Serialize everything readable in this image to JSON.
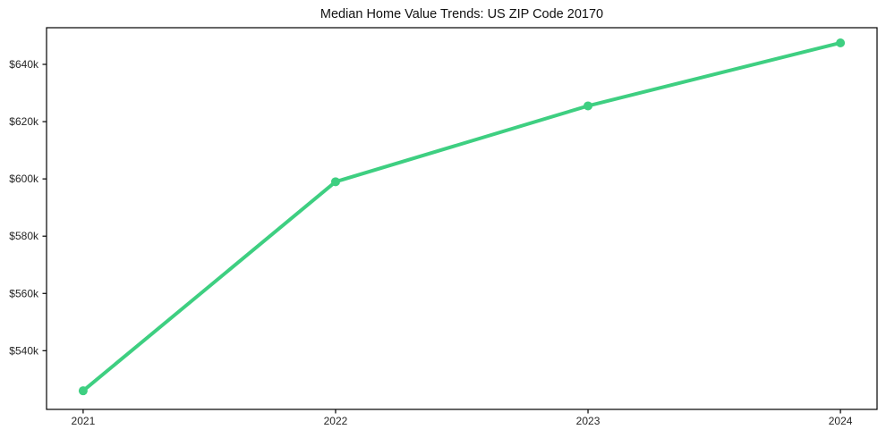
{
  "chart_data": {
    "type": "line",
    "title": "Median Home Value Trends: US ZIP Code 20170",
    "categories": [
      "2021",
      "2022",
      "2023",
      "2024"
    ],
    "values": [
      526000,
      599000,
      625500,
      647500
    ],
    "xlabel": "",
    "ylabel": "",
    "ylim": [
      519500,
      652800
    ],
    "yticks": [
      {
        "value": 540000,
        "label": "$540k"
      },
      {
        "value": 560000,
        "label": "$560k"
      },
      {
        "value": 580000,
        "label": "$580k"
      },
      {
        "value": 600000,
        "label": "$600k"
      },
      {
        "value": 620000,
        "label": "$620k"
      },
      {
        "value": 640000,
        "label": "$640k"
      }
    ],
    "grid": false,
    "legend_position": "none",
    "line_color": "#3ecf81",
    "marker": "circle",
    "axis_color": "#000000",
    "text_color": "#262626",
    "background_color": "#ffffff"
  }
}
